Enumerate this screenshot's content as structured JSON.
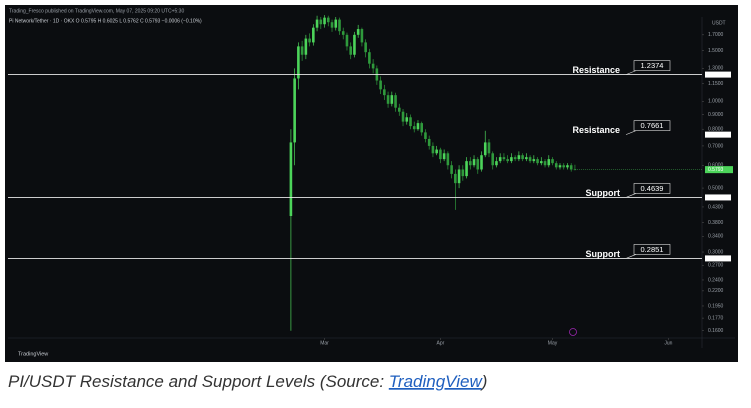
{
  "chart_data": {
    "type": "candlestick",
    "publisher": "Trading_Fresco published on TradingView.com, May 07, 2025 09:20 UTC+5:30",
    "legend": "Pi Network/Tether · 1D · OKX   O 0.5795  H 0.6025  L 0.5762  C 0.5793  −0.0006 (−0.10%)",
    "currency": "USDT",
    "watermark": "TradingView",
    "log_scale": true,
    "up_color": "#4cd45a",
    "down_color": "#2f9a3c",
    "open": [
      0.4,
      0.72,
      1.2,
      1.55,
      1.45,
      1.65,
      1.6,
      1.8,
      1.92,
      1.85,
      1.95,
      1.88,
      1.8,
      1.92,
      1.75,
      1.7,
      1.55,
      1.45,
      1.7,
      1.78,
      1.6,
      1.48,
      1.35,
      1.3,
      1.18,
      1.1,
      1.05,
      0.98,
      1.05,
      0.95,
      0.92,
      0.85,
      0.88,
      0.82,
      0.8,
      0.84,
      0.78,
      0.74,
      0.7,
      0.66,
      0.68,
      0.63,
      0.66,
      0.6,
      0.56,
      0.52,
      0.58,
      0.55,
      0.62,
      0.6,
      0.63,
      0.58,
      0.65,
      0.72,
      0.66,
      0.6,
      0.62,
      0.64,
      0.63,
      0.62,
      0.64,
      0.63,
      0.65,
      0.63,
      0.64,
      0.62,
      0.63,
      0.61,
      0.62,
      0.6,
      0.63,
      0.61,
      0.59,
      0.6,
      0.59,
      0.6,
      0.58
    ],
    "high": [
      0.8,
      1.3,
      1.6,
      1.62,
      1.7,
      1.72,
      1.85,
      1.98,
      1.96,
      1.99,
      1.98,
      1.92,
      1.96,
      1.95,
      1.8,
      1.73,
      1.6,
      1.74,
      1.84,
      1.8,
      1.64,
      1.52,
      1.4,
      1.33,
      1.22,
      1.14,
      1.08,
      1.08,
      1.07,
      0.98,
      0.94,
      0.91,
      0.9,
      0.85,
      0.86,
      0.85,
      0.8,
      0.76,
      0.72,
      0.7,
      0.69,
      0.68,
      0.67,
      0.62,
      0.58,
      0.6,
      0.6,
      0.64,
      0.64,
      0.65,
      0.64,
      0.67,
      0.79,
      0.74,
      0.67,
      0.64,
      0.66,
      0.66,
      0.65,
      0.66,
      0.65,
      0.67,
      0.66,
      0.66,
      0.65,
      0.65,
      0.64,
      0.64,
      0.63,
      0.65,
      0.64,
      0.62,
      0.61,
      0.61,
      0.61,
      0.61,
      0.6025
    ],
    "low": [
      0.16,
      0.6,
      1.1,
      1.38,
      1.4,
      1.55,
      1.56,
      1.75,
      1.78,
      1.8,
      1.82,
      1.74,
      1.76,
      1.7,
      1.64,
      1.5,
      1.4,
      1.42,
      1.66,
      1.55,
      1.42,
      1.3,
      1.25,
      1.14,
      1.06,
      1.01,
      0.95,
      0.96,
      0.92,
      0.89,
      0.82,
      0.83,
      0.8,
      0.78,
      0.79,
      0.76,
      0.72,
      0.68,
      0.64,
      0.65,
      0.61,
      0.62,
      0.58,
      0.54,
      0.42,
      0.5,
      0.53,
      0.54,
      0.58,
      0.59,
      0.56,
      0.57,
      0.64,
      0.64,
      0.58,
      0.59,
      0.61,
      0.62,
      0.61,
      0.61,
      0.62,
      0.62,
      0.62,
      0.62,
      0.61,
      0.61,
      0.6,
      0.6,
      0.59,
      0.59,
      0.6,
      0.58,
      0.58,
      0.58,
      0.58,
      0.57,
      0.5762
    ],
    "close": [
      0.72,
      1.2,
      1.55,
      1.45,
      1.65,
      1.6,
      1.8,
      1.92,
      1.85,
      1.95,
      1.88,
      1.8,
      1.92,
      1.75,
      1.7,
      1.55,
      1.45,
      1.7,
      1.78,
      1.6,
      1.48,
      1.35,
      1.3,
      1.18,
      1.1,
      1.05,
      0.98,
      1.05,
      0.95,
      0.92,
      0.85,
      0.88,
      0.82,
      0.8,
      0.84,
      0.78,
      0.74,
      0.7,
      0.66,
      0.68,
      0.63,
      0.66,
      0.6,
      0.56,
      0.52,
      0.58,
      0.55,
      0.62,
      0.6,
      0.63,
      0.58,
      0.65,
      0.72,
      0.66,
      0.6,
      0.62,
      0.64,
      0.63,
      0.62,
      0.64,
      0.63,
      0.65,
      0.63,
      0.64,
      0.62,
      0.63,
      0.61,
      0.62,
      0.6,
      0.63,
      0.61,
      0.59,
      0.6,
      0.59,
      0.6,
      0.58,
      0.5793
    ],
    "last_price": 0.5793,
    "xlim": [
      -75.7,
      110
    ],
    "xticks": [
      {
        "value": 9,
        "label": "Mar"
      },
      {
        "value": 40,
        "label": "Apr"
      },
      {
        "value": 70,
        "label": "May"
      },
      {
        "value": 101,
        "label": "Jun"
      }
    ],
    "ylim": [
      0.151,
      1.96
    ],
    "yticks": [
      {
        "value": 1.7,
        "label": "1.7000"
      },
      {
        "value": 1.5,
        "label": "1.5000"
      },
      {
        "value": 1.3,
        "label": "1.3000"
      },
      {
        "value": 1.15,
        "label": "1.1500"
      },
      {
        "value": 1,
        "label": "1.0000"
      },
      {
        "value": 0.9,
        "label": "0.9000"
      },
      {
        "value": 0.8,
        "label": "0.8000"
      },
      {
        "value": 0.7,
        "label": "0.7000"
      },
      {
        "value": 0.6,
        "label": "0.6000"
      },
      {
        "value": 0.5,
        "label": "0.5000"
      },
      {
        "value": 0.43,
        "label": "0.4300"
      },
      {
        "value": 0.38,
        "label": "0.3800"
      },
      {
        "value": 0.34,
        "label": "0.3400"
      },
      {
        "value": 0.3,
        "label": "0.3000"
      },
      {
        "value": 0.27,
        "label": "0.2700"
      },
      {
        "value": 0.24,
        "label": "0.2400"
      },
      {
        "value": 0.22,
        "label": "0.2200"
      },
      {
        "value": 0.195,
        "label": "0.1950"
      },
      {
        "value": 0.177,
        "label": "0.1770"
      },
      {
        "value": 0.16,
        "label": "0.1600"
      }
    ],
    "levels": [
      {
        "label": "Resistance",
        "value": 1.2374,
        "line": true
      },
      {
        "label": "Resistance",
        "value": 0.7661,
        "line": false
      },
      {
        "label": "Support",
        "value": 0.4639,
        "line": true
      },
      {
        "label": "Support",
        "value": 0.2851,
        "line": true
      }
    ]
  },
  "caption": {
    "text": "PI/USDT Resistance and Support Levels (Source: ",
    "link": "TradingView",
    "end": ")"
  }
}
